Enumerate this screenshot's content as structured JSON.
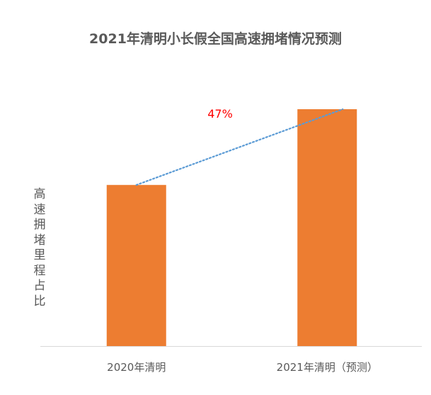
{
  "chart_data": {
    "type": "bar",
    "title": "2021年清明小长假全国高速拥堵情况预测",
    "ylabel": "高速拥堵里程占比",
    "xlabel": "",
    "categories": [
      "2020年清明",
      "2021年清明（预测）"
    ],
    "values": [
      1.0,
      1.47
    ],
    "ylim": [
      0,
      1.47
    ],
    "bar_color": "#ED7D31",
    "trendline": {
      "style": "dotted",
      "color": "#5B9BD5"
    },
    "annotation": {
      "text": "47%",
      "color": "#FF0000"
    },
    "grid": false,
    "legend": "none"
  }
}
